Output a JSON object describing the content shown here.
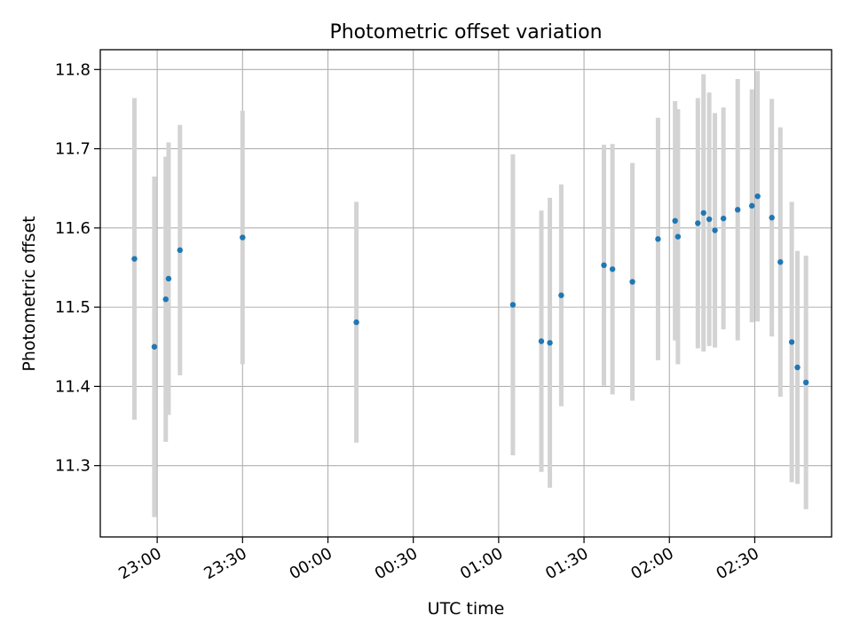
{
  "chart_data": {
    "type": "scatter",
    "title": "Photometric offset variation",
    "xlabel": "UTC time",
    "ylabel": "Photometric offset",
    "grid": true,
    "xlim": [
      "22:40",
      "02:57"
    ],
    "ylim": [
      11.21,
      11.825
    ],
    "xticks": [
      "23:00",
      "23:30",
      "00:00",
      "00:30",
      "01:00",
      "01:30",
      "02:00",
      "02:30"
    ],
    "yticks": [
      "11.3",
      "11.4",
      "11.5",
      "11.6",
      "11.7",
      "11.8"
    ],
    "point_color": "#1f77b4",
    "errorbar_color": "#d3d3d3",
    "points": [
      {
        "t": "22:52",
        "y": 11.561,
        "err": 0.203
      },
      {
        "t": "22:59",
        "y": 11.45,
        "err": 0.215
      },
      {
        "t": "23:03",
        "y": 11.51,
        "err": 0.18
      },
      {
        "t": "23:04",
        "y": 11.536,
        "err": 0.172
      },
      {
        "t": "23:08",
        "y": 11.572,
        "err": 0.158
      },
      {
        "t": "23:30",
        "y": 11.588,
        "err": 0.16
      },
      {
        "t": "00:10",
        "y": 11.481,
        "err": 0.152
      },
      {
        "t": "01:05",
        "y": 11.503,
        "err": 0.19
      },
      {
        "t": "01:15",
        "y": 11.457,
        "err": 0.165
      },
      {
        "t": "01:18",
        "y": 11.455,
        "err": 0.183
      },
      {
        "t": "01:22",
        "y": 11.515,
        "err": 0.14
      },
      {
        "t": "01:37",
        "y": 11.553,
        "err": 0.152
      },
      {
        "t": "01:40",
        "y": 11.548,
        "err": 0.158
      },
      {
        "t": "01:47",
        "y": 11.532,
        "err": 0.15
      },
      {
        "t": "01:56",
        "y": 11.586,
        "err": 0.153
      },
      {
        "t": "02:02",
        "y": 11.609,
        "err": 0.151
      },
      {
        "t": "02:03",
        "y": 11.589,
        "err": 0.161
      },
      {
        "t": "02:10",
        "y": 11.606,
        "err": 0.158
      },
      {
        "t": "02:12",
        "y": 11.619,
        "err": 0.175
      },
      {
        "t": "02:14",
        "y": 11.611,
        "err": 0.16
      },
      {
        "t": "02:16",
        "y": 11.597,
        "err": 0.148
      },
      {
        "t": "02:19",
        "y": 11.612,
        "err": 0.14
      },
      {
        "t": "02:24",
        "y": 11.623,
        "err": 0.165
      },
      {
        "t": "02:29",
        "y": 11.628,
        "err": 0.147
      },
      {
        "t": "02:31",
        "y": 11.64,
        "err": 0.158
      },
      {
        "t": "02:36",
        "y": 11.613,
        "err": 0.15
      },
      {
        "t": "02:39",
        "y": 11.557,
        "err": 0.17
      },
      {
        "t": "02:43",
        "y": 11.456,
        "err": 0.177
      },
      {
        "t": "02:45",
        "y": 11.424,
        "err": 0.147
      },
      {
        "t": "02:48",
        "y": 11.405,
        "err": 0.16
      }
    ]
  }
}
